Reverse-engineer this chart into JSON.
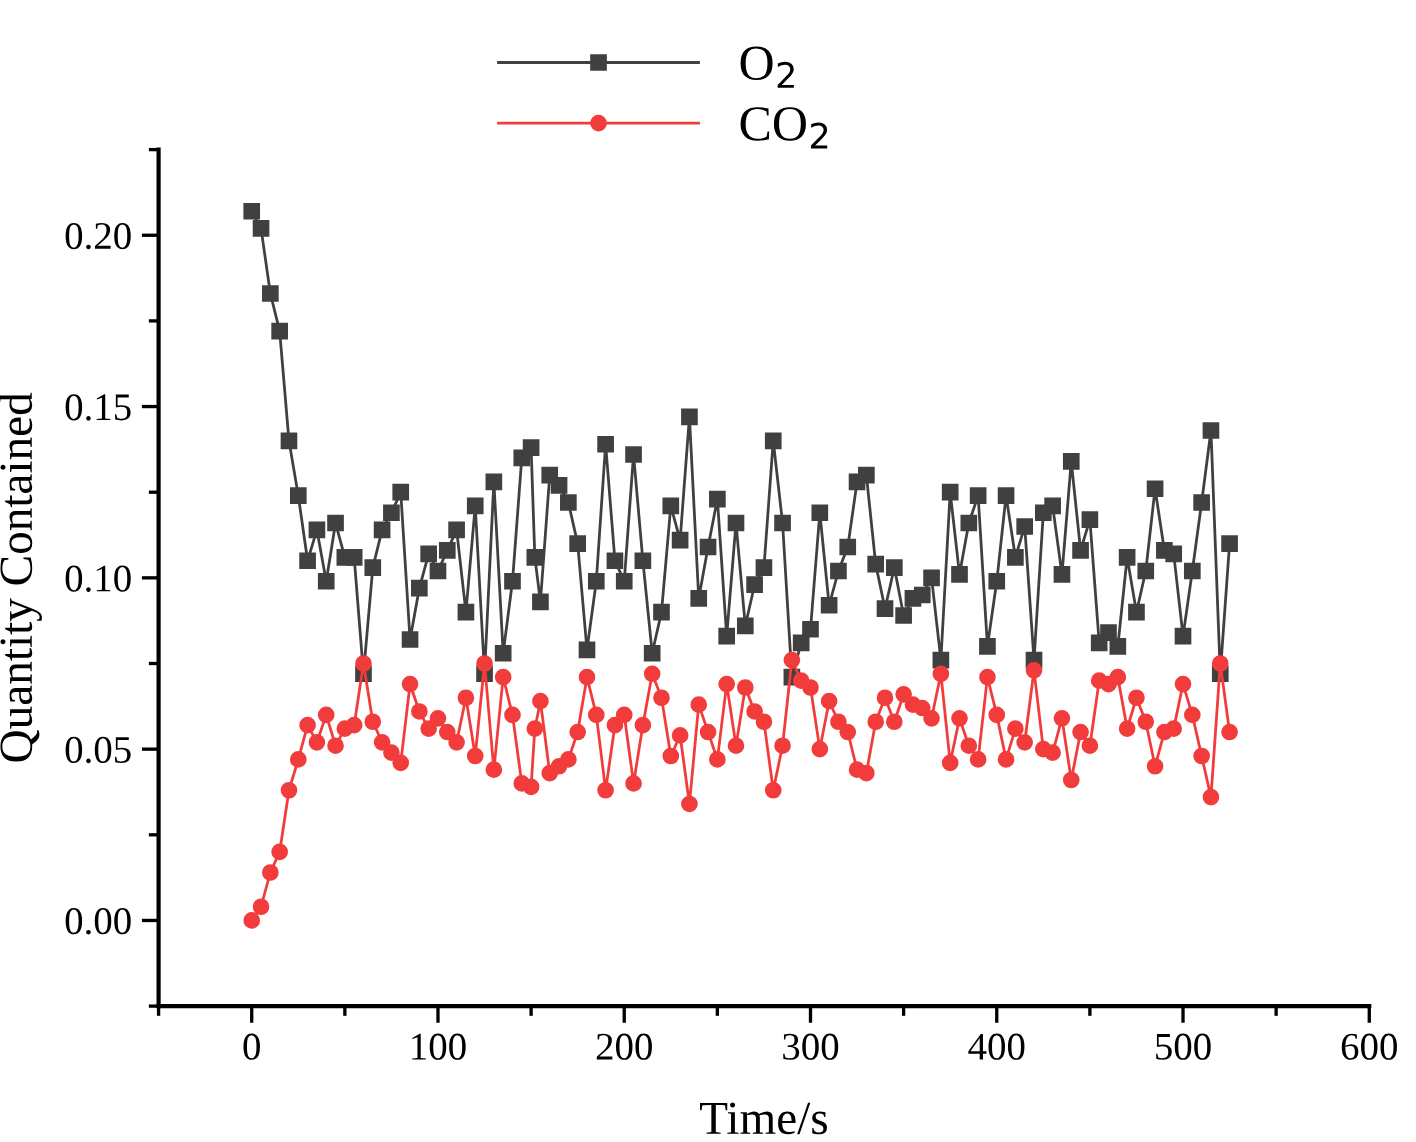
{
  "chart_data": {
    "type": "line",
    "xlabel": "Time/s",
    "ylabel": "Quantity Contained",
    "x": [
      0,
      5,
      10,
      15,
      20,
      25,
      30,
      35,
      40,
      45,
      50,
      55,
      60,
      65,
      70,
      75,
      80,
      85,
      90,
      95,
      100,
      105,
      110,
      115,
      120,
      125,
      130,
      135,
      140,
      145,
      150,
      152,
      155,
      160,
      165,
      170,
      175,
      180,
      185,
      190,
      195,
      200,
      205,
      210,
      215,
      220,
      225,
      230,
      235,
      240,
      245,
      250,
      255,
      260,
      265,
      270,
      275,
      280,
      285,
      290,
      295,
      300,
      305,
      310,
      315,
      320,
      325,
      330,
      335,
      340,
      345,
      350,
      355,
      360,
      365,
      370,
      375,
      380,
      385,
      390,
      395,
      400,
      405,
      410,
      415,
      420,
      425,
      430,
      435,
      440,
      445,
      450,
      455,
      460,
      465,
      470,
      475,
      480,
      485,
      490,
      495,
      500,
      505,
      510,
      515,
      520,
      525
    ],
    "series": [
      {
        "name": "O$_{2}$",
        "color": "#404040",
        "marker": "square",
        "values": [
          0.207,
          0.202,
          0.183,
          0.172,
          0.14,
          0.124,
          0.105,
          0.114,
          0.099,
          0.116,
          0.106,
          0.106,
          0.072,
          0.103,
          0.114,
          0.119,
          0.125,
          0.082,
          0.097,
          0.107,
          0.102,
          0.108,
          0.114,
          0.09,
          0.121,
          0.072,
          0.128,
          0.078,
          0.099,
          0.135,
          0.138,
          0.106,
          0.093,
          0.13,
          0.127,
          0.122,
          0.11,
          0.079,
          0.099,
          0.139,
          0.105,
          0.099,
          0.136,
          0.105,
          0.078,
          0.09,
          0.121,
          0.111,
          0.147,
          0.094,
          0.109,
          0.123,
          0.083,
          0.116,
          0.086,
          0.098,
          0.103,
          0.14,
          0.116,
          0.071,
          0.081,
          0.085,
          0.119,
          0.092,
          0.102,
          0.109,
          0.128,
          0.13,
          0.104,
          0.091,
          0.103,
          0.089,
          0.094,
          0.095,
          0.1,
          0.076,
          0.125,
          0.101,
          0.116,
          0.124,
          0.08,
          0.099,
          0.124,
          0.106,
          0.115,
          0.076,
          0.119,
          0.121,
          0.101,
          0.134,
          0.108,
          0.117,
          0.081,
          0.084,
          0.08,
          0.106,
          0.09,
          0.102,
          0.126,
          0.108,
          0.107,
          0.083,
          0.102,
          0.122,
          0.143,
          0.072,
          0.11
        ]
      },
      {
        "name": "CO$_{2}$",
        "color": "#f23c3c",
        "marker": "circle",
        "values": [
          0.0,
          0.004,
          0.014,
          0.02,
          0.038,
          0.047,
          0.057,
          0.052,
          0.06,
          0.051,
          0.056,
          0.057,
          0.075,
          0.058,
          0.052,
          0.049,
          0.046,
          0.069,
          0.061,
          0.056,
          0.059,
          0.055,
          0.052,
          0.065,
          0.048,
          0.075,
          0.044,
          0.071,
          0.06,
          0.04,
          0.039,
          0.056,
          0.064,
          0.043,
          0.045,
          0.047,
          0.055,
          0.071,
          0.06,
          0.038,
          0.057,
          0.06,
          0.04,
          0.057,
          0.072,
          0.065,
          0.048,
          0.054,
          0.034,
          0.063,
          0.055,
          0.047,
          0.069,
          0.051,
          0.068,
          0.061,
          0.058,
          0.038,
          0.051,
          0.076,
          0.07,
          0.068,
          0.05,
          0.064,
          0.058,
          0.055,
          0.044,
          0.043,
          0.058,
          0.065,
          0.058,
          0.066,
          0.063,
          0.062,
          0.059,
          0.072,
          0.046,
          0.059,
          0.051,
          0.047,
          0.071,
          0.06,
          0.047,
          0.056,
          0.052,
          0.073,
          0.05,
          0.049,
          0.059,
          0.041,
          0.055,
          0.051,
          0.07,
          0.069,
          0.071,
          0.056,
          0.065,
          0.058,
          0.045,
          0.055,
          0.056,
          0.069,
          0.06,
          0.048,
          0.036,
          0.075,
          0.055
        ]
      }
    ],
    "xlim": [
      -50,
      600
    ],
    "xticks": [
      0,
      100,
      200,
      300,
      400,
      500,
      600
    ],
    "ylim": [
      -0.025,
      0.225
    ],
    "yticks": [
      {
        "value": 0,
        "label": "0.00"
      },
      {
        "value": 0.05,
        "label": "0.05"
      },
      {
        "value": 0.1,
        "label": "0.10"
      },
      {
        "value": 0.15,
        "label": "0.15"
      },
      {
        "value": 0.2,
        "label": "0.20"
      }
    ],
    "legend": "top",
    "grid": false,
    "line_style": "solid"
  }
}
